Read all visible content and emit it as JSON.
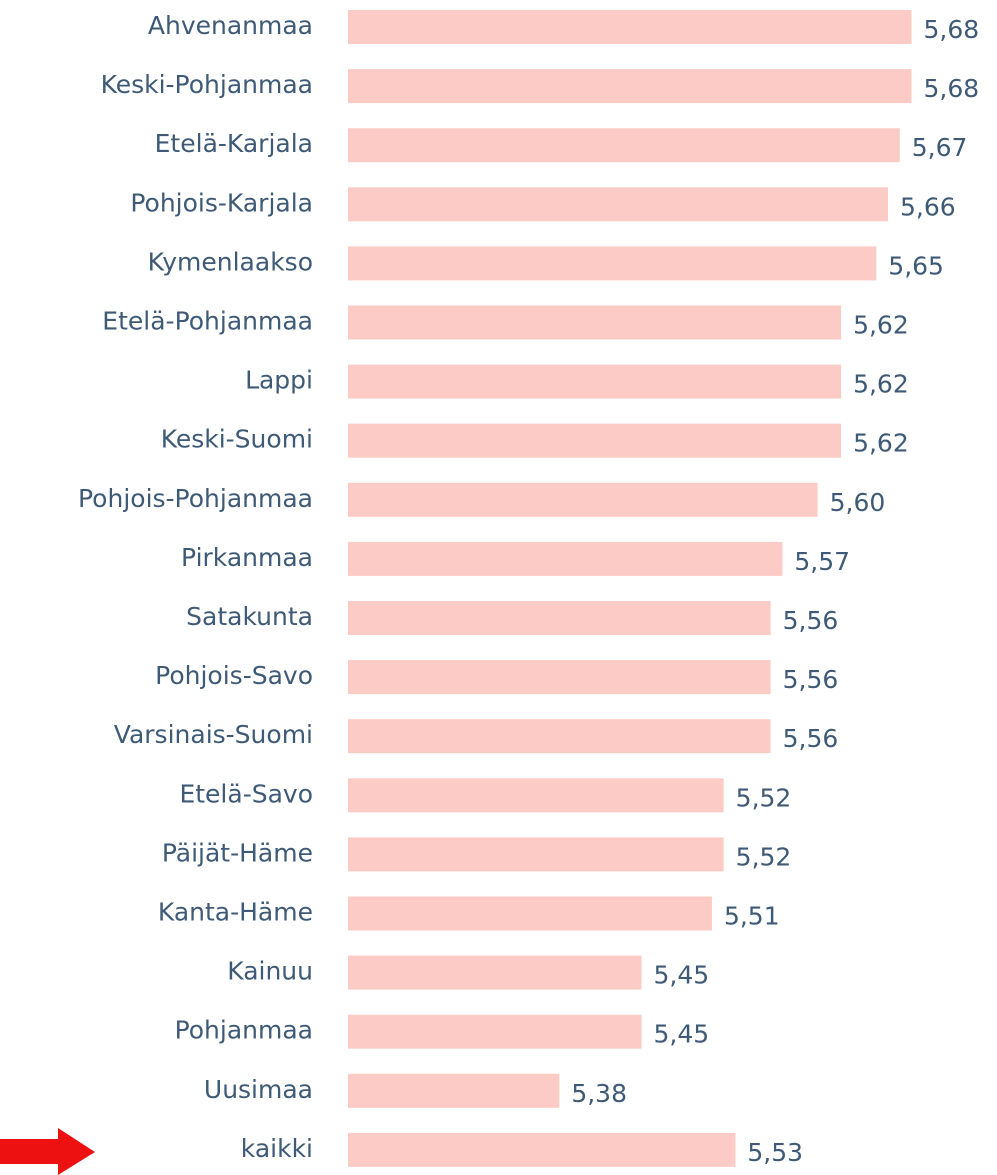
{
  "chart_data": {
    "type": "bar",
    "orientation": "horizontal",
    "categories": [
      "Ahvenanmaa",
      "Keski-Pohjanmaa",
      "Etelä-Karjala",
      "Pohjois-Karjala",
      "Kymenlaakso",
      "Etelä-Pohjanmaa",
      "Lappi",
      "Keski-Suomi",
      "Pohjois-Pohjanmaa",
      "Pirkanmaa",
      "Satakunta",
      "Pohjois-Savo",
      "Varsinais-Suomi",
      "Etelä-Savo",
      "Päijät-Häme",
      "Kanta-Häme",
      "Kainuu",
      "Pohjanmaa",
      "Uusimaa",
      "kaikki"
    ],
    "values": [
      5.68,
      5.68,
      5.67,
      5.66,
      5.65,
      5.62,
      5.62,
      5.62,
      5.6,
      5.57,
      5.56,
      5.56,
      5.56,
      5.52,
      5.52,
      5.51,
      5.45,
      5.45,
      5.38,
      5.53
    ],
    "value_labels": [
      "5,68",
      "5,68",
      "5,67",
      "5,66",
      "5,65",
      "5,62",
      "5,62",
      "5,62",
      "5,60",
      "5,57",
      "5,56",
      "5,56",
      "5,56",
      "5,52",
      "5,52",
      "5,51",
      "5,45",
      "5,45",
      "5,38",
      "5,53"
    ],
    "color": "#fdcbc6",
    "xlim": [
      5.2,
      5.7
    ]
  }
}
